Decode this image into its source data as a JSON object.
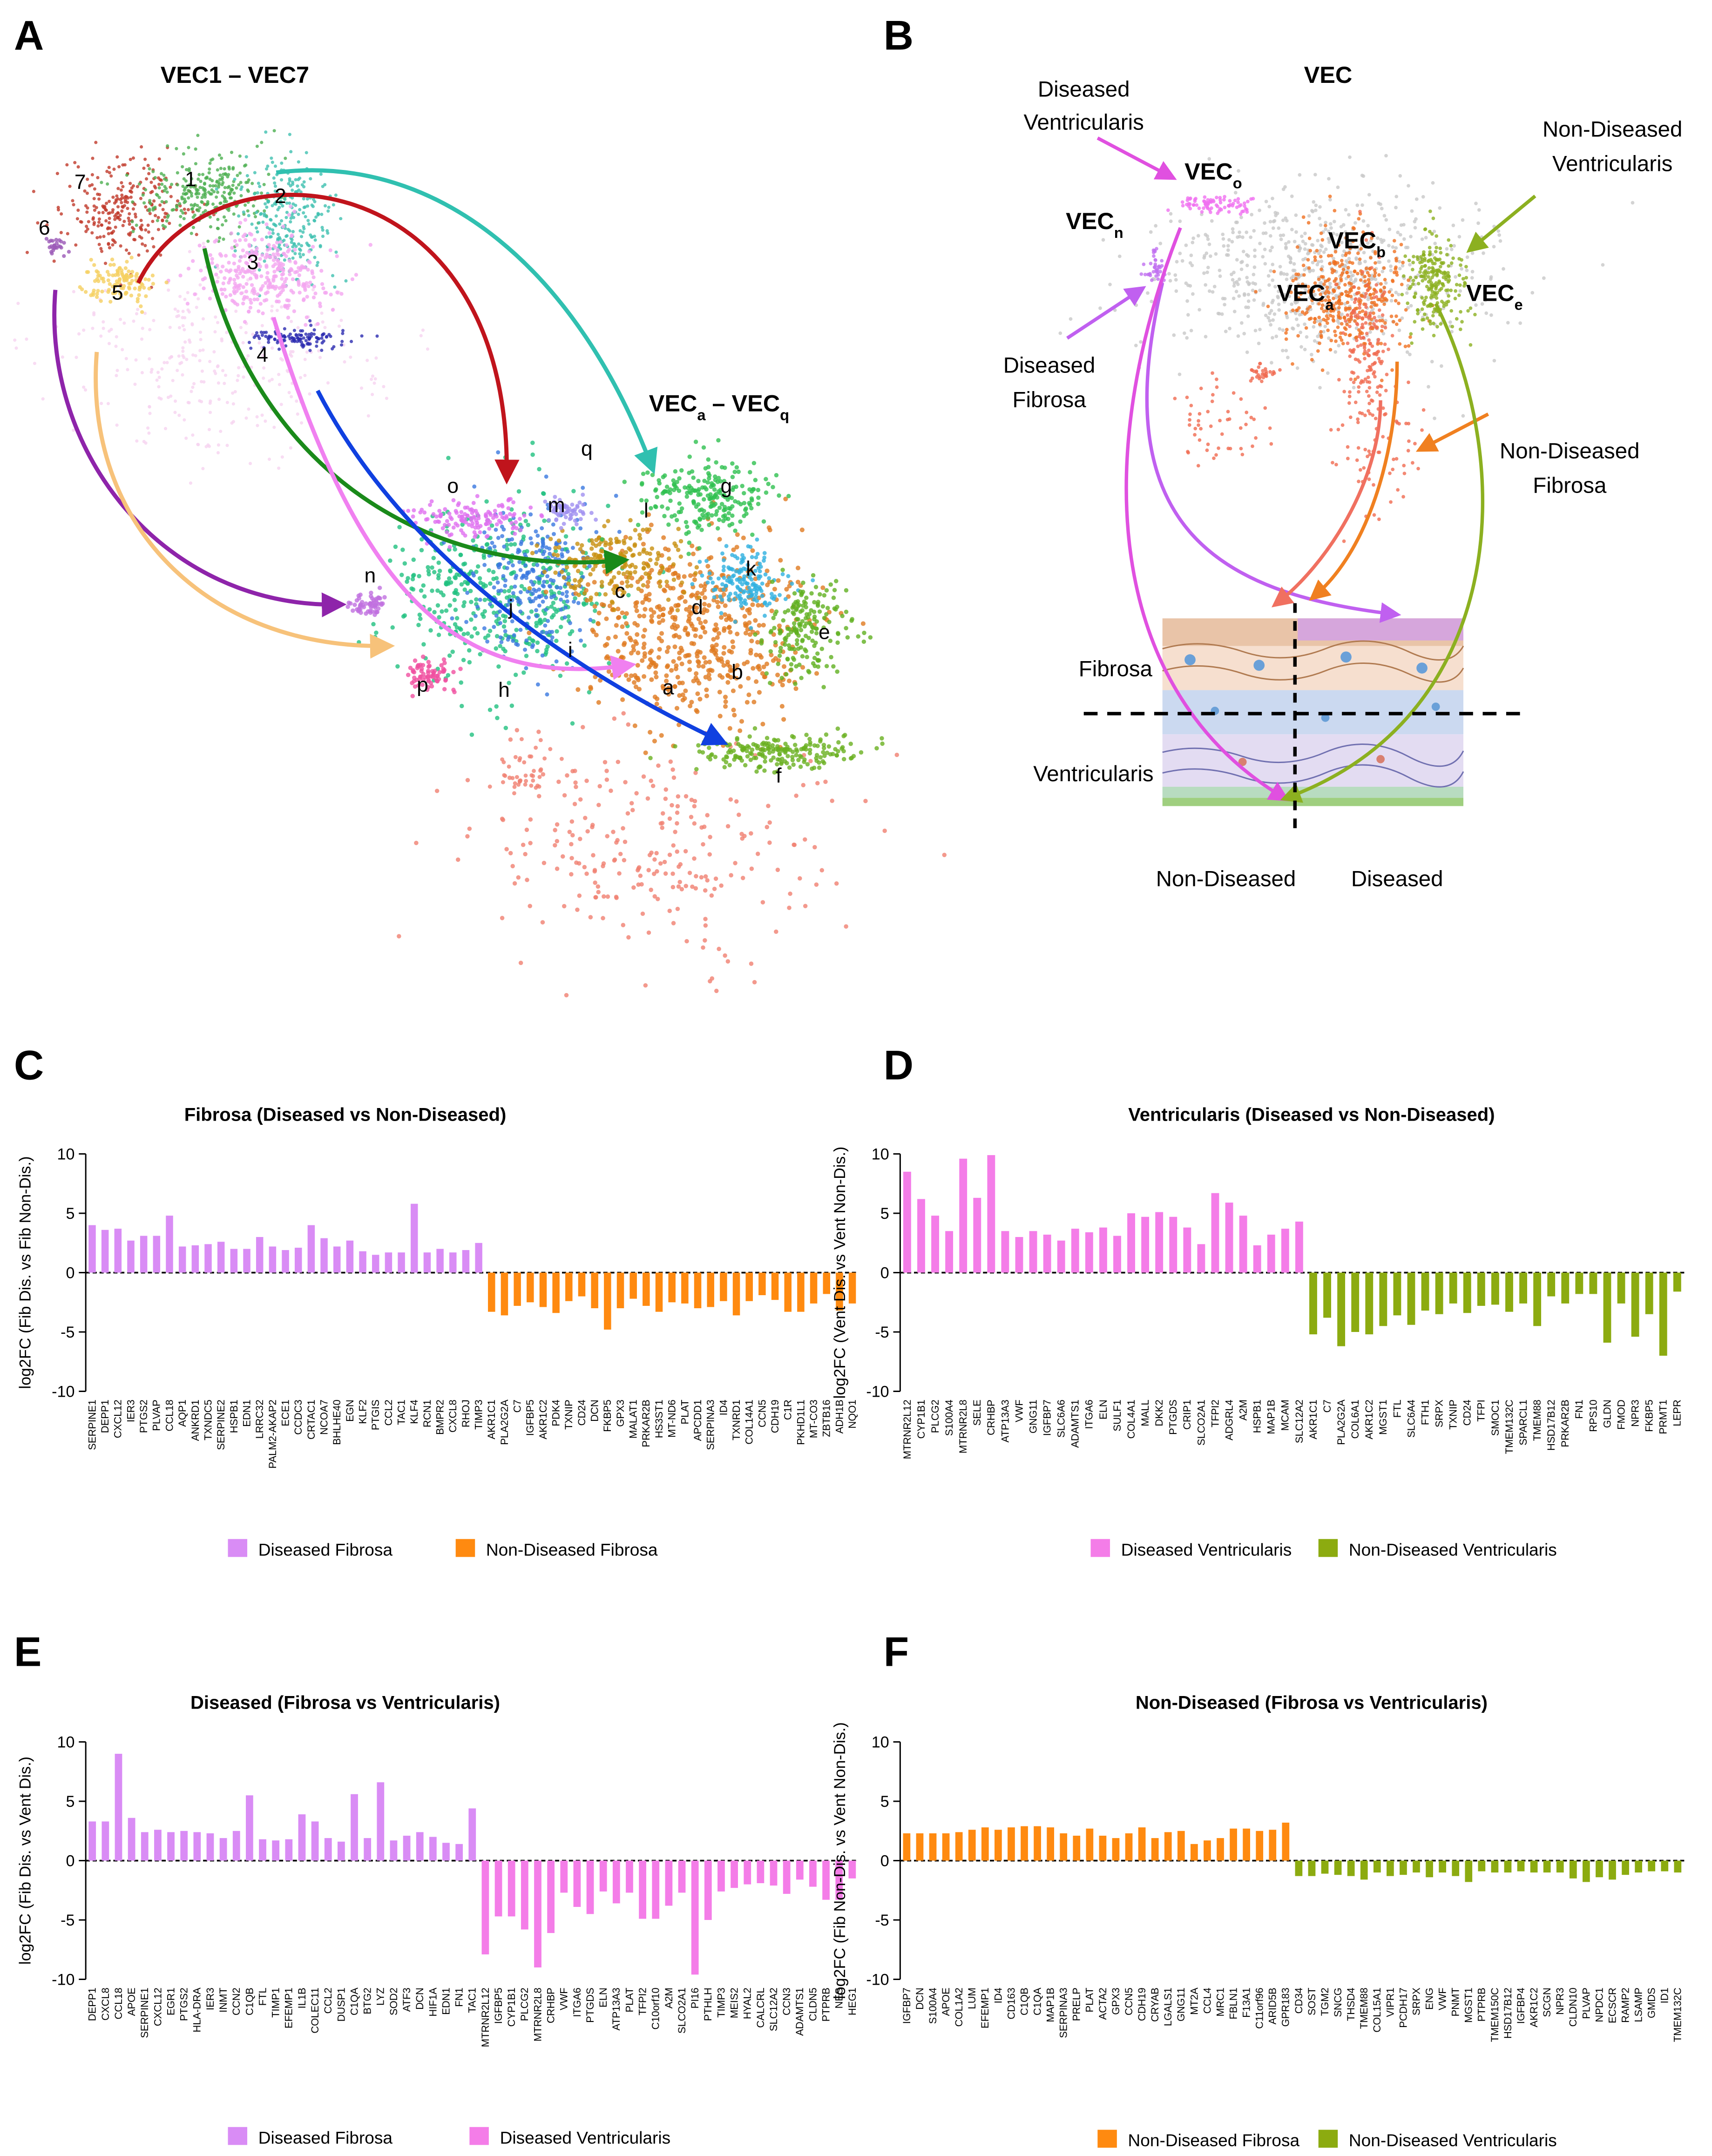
{
  "panel_a": {
    "letter": "A",
    "title": "VEC1 – VEC7",
    "title2": [
      "VEC",
      "a",
      " – VEC",
      "q"
    ],
    "source_clusters": [
      "1",
      "2",
      "3",
      "4",
      "5",
      "6",
      "7"
    ],
    "target_clusters": [
      "a",
      "b",
      "c",
      "d",
      "e",
      "f",
      "g",
      "h",
      "i",
      "j",
      "k",
      "l",
      "m",
      "n",
      "o",
      "p",
      "q"
    ]
  },
  "panel_b": {
    "letter": "B",
    "title": "VEC",
    "vec_labels": [
      {
        "base": "VEC",
        "sub": "o"
      },
      {
        "base": "VEC",
        "sub": "n"
      },
      {
        "base": "VEC",
        "sub": "b"
      },
      {
        "base": "VEC",
        "sub": "a"
      },
      {
        "base": "VEC",
        "sub": "e"
      }
    ],
    "diseased_ventricularis": [
      "Diseased",
      "Ventricularis"
    ],
    "non_diseased_ventricularis": [
      "Non-Diseased",
      "Ventricularis"
    ],
    "diseased_fibrosa": [
      "Diseased",
      "Fibrosa"
    ],
    "non_diseased_fibrosa": [
      "Non-Diseased",
      "Fibrosa"
    ],
    "layer_fibrosa": "Fibrosa",
    "layer_ventricularis": "Ventricularis",
    "bottom_left": "Non-Diseased",
    "bottom_right": "Diseased"
  },
  "chart_data": [
    {
      "type": "bar",
      "panel": "C",
      "title": "Fibrosa (Diseased vs Non-Diseased)",
      "ylabel": "log2FC (Fib Dis. vs Fib Non-Dis.)",
      "ylim": [
        -10,
        10
      ],
      "yticks": [
        -10,
        -5,
        0,
        5,
        10
      ],
      "categories": [
        "SERPINE1",
        "DEPP1",
        "CXCL12",
        "IER3",
        "PTGS2",
        "PLVAP",
        "CCL18",
        "AQP1",
        "ANKRD1",
        "TXNDC5",
        "SERPINE2",
        "HSPB1",
        "EDN1",
        "LRRC32",
        "PALM2-AKAP2",
        "ECE1",
        "CCDC3",
        "CRTAC1",
        "NCOA7",
        "BHLHE40",
        "EGN",
        "KLF2",
        "PTGIS",
        "CCL2",
        "TAC1",
        "KLF4",
        "RCN1",
        "BMPR2",
        "CXCL8",
        "RHOJ",
        "TIMP3",
        "AKR1C1",
        "PLA2G2A",
        "C7",
        "IGFBP5",
        "AKR1C2",
        "PDK4",
        "TXNIP",
        "CD24",
        "DCN",
        "FKBP5",
        "GPX3",
        "MALAT1",
        "PRKAR2B",
        "HS3ST1",
        "MT-ND6",
        "PLAT",
        "APCDD1",
        "SERPINA3",
        "ID4",
        "TXNRD1",
        "COL14A1",
        "CCN5",
        "CDH19",
        "C1R",
        "PKHD1L1",
        "MT-CO3",
        "ZBTB16",
        "ADH1B",
        "NQO1"
      ],
      "series": [
        {
          "name": "Diseased Fibrosa",
          "color": "#d98cf5",
          "values": [
            4.0,
            3.6,
            3.7,
            2.7,
            3.1,
            3.1,
            4.8,
            2.2,
            2.3,
            2.4,
            2.6,
            2.0,
            2.0,
            3.0,
            2.2,
            1.9,
            2.1,
            4.0,
            2.9,
            2.2,
            2.7,
            1.8,
            1.5,
            1.7,
            1.7,
            5.8,
            1.7,
            2.0,
            1.7,
            1.9,
            2.5,
            null,
            null,
            null,
            null,
            null,
            null,
            null,
            null,
            null,
            null,
            null,
            null,
            null,
            null,
            null,
            null,
            null,
            null,
            null,
            null,
            null,
            null,
            null,
            null,
            null,
            null,
            null,
            null,
            null
          ]
        },
        {
          "name": "Non-Diseased Fibrosa",
          "color": "#ff8a10",
          "values": [
            null,
            null,
            null,
            null,
            null,
            null,
            null,
            null,
            null,
            null,
            null,
            null,
            null,
            null,
            null,
            null,
            null,
            null,
            null,
            null,
            null,
            null,
            null,
            null,
            null,
            null,
            null,
            null,
            null,
            null,
            null,
            -3.3,
            -3.6,
            -2.8,
            -2.5,
            -2.9,
            -3.4,
            -2.4,
            -2.0,
            -3.0,
            -4.8,
            -3.0,
            -2.2,
            -2.8,
            -3.3,
            -2.5,
            -2.6,
            -3.0,
            -2.9,
            -2.4,
            -3.6,
            -2.4,
            -1.9,
            -2.3,
            -3.3,
            -3.3,
            -2.6,
            -1.8,
            -3.2,
            -2.6
          ]
        }
      ]
    },
    {
      "type": "bar",
      "panel": "D",
      "title": "Ventricularis (Diseased vs Non-Diseased)",
      "ylabel": "log2FC (Vent Dis. vs Vent Non-Dis.)",
      "ylim": [
        -10,
        10
      ],
      "yticks": [
        -10,
        -5,
        0,
        5,
        10
      ],
      "categories": [
        "MTRNR2L12",
        "CYP1B1",
        "PLCG2",
        "S100A4",
        "MTRNR2L8",
        "SELE",
        "CRHBP",
        "ATP13A3",
        "VWF",
        "GNG11",
        "IGFBP7",
        "SLC6A6",
        "ADAMTS1",
        "ITGA6",
        "ELN",
        "SULF1",
        "COL4A1",
        "MALL",
        "DKK2",
        "PTGDS",
        "CRIP1",
        "SLCO2A1",
        "TFPI2",
        "ADGRL4",
        "A2M",
        "HSPB1",
        "MAP1B",
        "MCAM",
        "SLC12A2",
        "AKR1C1",
        "C7",
        "PLA2G2A",
        "COL6A1",
        "AKR1C2",
        "MGST1",
        "FTL",
        "SLC6A4",
        "FTH1",
        "SRPX",
        "TXNIP",
        "CD24",
        "TFPI",
        "SMOC1",
        "TMEM132C",
        "SPARCL1",
        "TMEM88",
        "HSD17B12",
        "PRKAR2B",
        "FN1",
        "RPS10",
        "GLDN",
        "FMOD",
        "NPR3",
        "FKBP5",
        "PRMT1",
        "LEPR"
      ],
      "series": [
        {
          "name": "Diseased Ventricularis",
          "color": "#f47de8",
          "values": [
            8.5,
            6.2,
            4.8,
            3.5,
            9.6,
            6.3,
            9.9,
            3.5,
            3.0,
            3.5,
            3.2,
            2.7,
            3.7,
            3.4,
            3.8,
            3.1,
            5.0,
            4.7,
            5.1,
            4.7,
            3.8,
            2.4,
            6.7,
            5.9,
            4.8,
            2.3,
            3.2,
            3.7,
            4.3,
            null,
            null,
            null,
            null,
            null,
            null,
            null,
            null,
            null,
            null,
            null,
            null,
            null,
            null,
            null,
            null,
            null,
            null,
            null,
            null,
            null,
            null,
            null,
            null,
            null,
            null,
            null
          ]
        },
        {
          "name": "Non-Diseased Ventricularis",
          "color": "#8cab10",
          "values": [
            null,
            null,
            null,
            null,
            null,
            null,
            null,
            null,
            null,
            null,
            null,
            null,
            null,
            null,
            null,
            null,
            null,
            null,
            null,
            null,
            null,
            null,
            null,
            null,
            null,
            null,
            null,
            null,
            null,
            -5.2,
            -3.8,
            -6.2,
            -5.0,
            -5.2,
            -4.5,
            -3.6,
            -4.4,
            -3.2,
            -3.5,
            -2.6,
            -3.4,
            -2.8,
            -2.7,
            -3.3,
            -2.6,
            -4.5,
            -2.0,
            -2.6,
            -1.8,
            -1.8,
            -5.9,
            -2.6,
            -5.4,
            -3.5,
            -7.0,
            -1.6
          ]
        }
      ]
    },
    {
      "type": "bar",
      "panel": "E",
      "title": "Diseased (Fibrosa vs Ventricularis)",
      "ylabel": "log2FC (Fib Dis. vs Vent Dis.)",
      "ylim": [
        -10,
        10
      ],
      "yticks": [
        -10,
        -5,
        0,
        5,
        10
      ],
      "categories": [
        "DEPP1",
        "CXCL8",
        "CCL18",
        "APOE",
        "SERPINE1",
        "CXCL12",
        "EGR1",
        "PTGS2",
        "HLA-DRA",
        "IER3",
        "INMT",
        "CCN2",
        "C1QB",
        "FTL",
        "TIMP1",
        "EFEMP1",
        "IL1B",
        "COLEC11",
        "CCL2",
        "DUSP1",
        "C1QA",
        "BTG2",
        "LYZ",
        "SOD2",
        "ATF3",
        "DCN",
        "HIF1A",
        "EDN1",
        "FN1",
        "TAC1",
        "MTRNR2L12",
        "IGFBP5",
        "CYP1B1",
        "PLCG2",
        "MTRNR2L8",
        "CRHBP",
        "VWF",
        "ITGA6",
        "PTGDS",
        "ELN",
        "ATP13A3",
        "PLAT",
        "TFPI2",
        "C10orf10",
        "A2M",
        "SLCO2A1",
        "PI16",
        "PTHLH",
        "TIMP3",
        "MEIS2",
        "HYAL2",
        "CALCRL",
        "SLC12A2",
        "CCN3",
        "ADAMTS1",
        "CLDN5",
        "PTPRB",
        "NES",
        "HEG1"
      ],
      "series": [
        {
          "name": "Diseased Fibrosa",
          "color": "#d98cf5",
          "values": [
            3.3,
            3.3,
            9.0,
            3.6,
            2.4,
            2.6,
            2.4,
            2.5,
            2.4,
            2.3,
            1.9,
            2.5,
            5.5,
            1.8,
            1.7,
            1.8,
            3.9,
            3.3,
            1.9,
            1.6,
            5.6,
            1.9,
            6.6,
            1.7,
            2.1,
            2.4,
            2.0,
            1.5,
            1.4,
            4.4,
            null,
            null,
            null,
            null,
            null,
            null,
            null,
            null,
            null,
            null,
            null,
            null,
            null,
            null,
            null,
            null,
            null,
            null,
            null,
            null,
            null,
            null,
            null,
            null,
            null,
            null,
            null,
            null,
            null
          ]
        },
        {
          "name": "Diseased Ventricularis",
          "color": "#f47de8",
          "values": [
            null,
            null,
            null,
            null,
            null,
            null,
            null,
            null,
            null,
            null,
            null,
            null,
            null,
            null,
            null,
            null,
            null,
            null,
            null,
            null,
            null,
            null,
            null,
            null,
            null,
            null,
            null,
            null,
            null,
            null,
            -7.9,
            -4.7,
            -4.7,
            -5.8,
            -9.0,
            -6.1,
            -2.7,
            -3.9,
            -4.5,
            -2.6,
            -3.6,
            -2.7,
            -4.9,
            -4.9,
            -3.8,
            -2.7,
            -9.6,
            -5.0,
            -2.6,
            -2.3,
            -2.0,
            -1.9,
            -2.1,
            -2.8,
            -1.6,
            -2.2,
            -3.3,
            -3.3,
            -1.5
          ]
        }
      ]
    },
    {
      "type": "bar",
      "panel": "F",
      "title": "Non-Diseased (Fibrosa vs Ventricularis)",
      "ylabel": "log2FC (Fib Non-Dis. vs Vent Non-Dis.)",
      "ylim": [
        -10,
        10
      ],
      "yticks": [
        -10,
        -5,
        0,
        5,
        10
      ],
      "categories": [
        "IGFBP7",
        "DCN",
        "S100A4",
        "APOE",
        "COL1A2",
        "LUM",
        "EFEMP1",
        "ID4",
        "CD163",
        "C1QB",
        "C1QA",
        "MAP1B",
        "SERPINA3",
        "PRELP",
        "PLAT",
        "ACTA2",
        "GPX3",
        "CCN5",
        "CDH19",
        "CRYAB",
        "LGALS1",
        "GNG11",
        "MT2A",
        "CCL4",
        "MRC1",
        "FBLN1",
        "F13A1",
        "C11orf96",
        "ARID5B",
        "GPR183",
        "CD34",
        "SOST",
        "TGM2",
        "SNCG",
        "THSD4",
        "TMEM88",
        "COL15A1",
        "VIPR1",
        "PCDH17",
        "SRPX",
        "ENG",
        "VWF",
        "PNMT",
        "MGST1",
        "PTPRB",
        "TMEM150C",
        "HSD17B12",
        "IGFBP4",
        "AKR1C2",
        "SCGN",
        "NPR3",
        "CLDN10",
        "PLVAP",
        "NPDC1",
        "ECSCR",
        "RAMP2",
        "LSAMP",
        "GMDS",
        "ID1",
        "TMEM132C"
      ],
      "series": [
        {
          "name": "Non-Diseased Fibrosa",
          "color": "#ff8a10",
          "values": [
            2.3,
            2.3,
            2.3,
            2.3,
            2.4,
            2.6,
            2.8,
            2.6,
            2.8,
            2.9,
            2.9,
            2.8,
            2.3,
            2.1,
            2.7,
            2.1,
            1.9,
            2.3,
            2.8,
            1.9,
            2.4,
            2.5,
            1.4,
            1.7,
            1.9,
            2.7,
            2.7,
            2.5,
            2.6,
            3.2,
            null,
            null,
            null,
            null,
            null,
            null,
            null,
            null,
            null,
            null,
            null,
            null,
            null,
            null,
            null,
            null,
            null,
            null,
            null,
            null,
            null,
            null,
            null,
            null,
            null,
            null,
            null,
            null,
            null,
            null
          ]
        },
        {
          "name": "Non-Diseased Ventricularis",
          "color": "#8cab10",
          "values": [
            null,
            null,
            null,
            null,
            null,
            null,
            null,
            null,
            null,
            null,
            null,
            null,
            null,
            null,
            null,
            null,
            null,
            null,
            null,
            null,
            null,
            null,
            null,
            null,
            null,
            null,
            null,
            null,
            null,
            null,
            -1.3,
            -1.3,
            -1.1,
            -1.2,
            -1.3,
            -1.6,
            -1.0,
            -1.3,
            -1.2,
            -1.0,
            -1.4,
            -1.0,
            -1.3,
            -1.8,
            -0.9,
            -1.0,
            -1.0,
            -0.9,
            -1.0,
            -1.0,
            -1.0,
            -1.5,
            -1.8,
            -1.4,
            -1.6,
            -1.2,
            -1.0,
            -0.9,
            -0.9,
            -1.0
          ]
        }
      ]
    }
  ]
}
